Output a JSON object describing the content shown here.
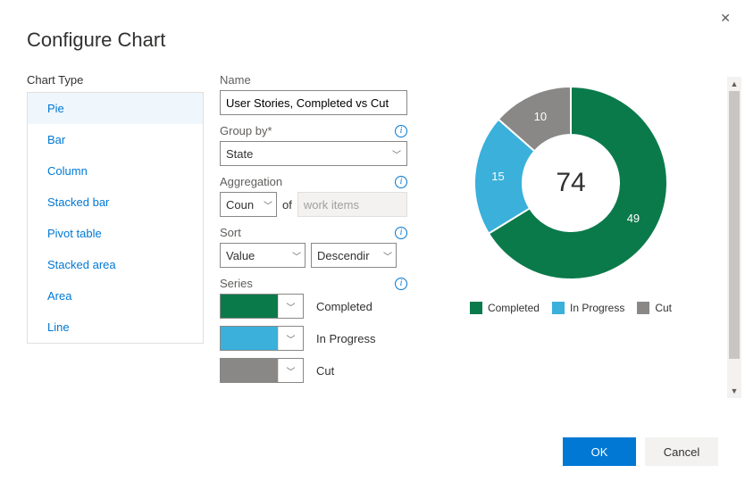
{
  "dialog": {
    "title": "Configure Chart",
    "close_label": "Close"
  },
  "chart_type": {
    "section_label": "Chart Type",
    "items": [
      "Pie",
      "Bar",
      "Column",
      "Stacked bar",
      "Pivot table",
      "Stacked area",
      "Area",
      "Line"
    ],
    "selected_index": 0
  },
  "fields": {
    "name_label": "Name",
    "name_value": "User Stories, Completed vs Cut",
    "group_by_label": "Group by*",
    "group_by_value": "State",
    "aggregation_label": "Aggregation",
    "aggregation_value": "Coun",
    "of_label": "of",
    "of_placeholder": "work items",
    "sort_label": "Sort",
    "sort_field": "Value",
    "sort_direction": "Descendir",
    "series_label": "Series"
  },
  "series": [
    {
      "label": "Completed",
      "color": "#0b7a4b"
    },
    {
      "label": "In Progress",
      "color": "#3ab0db"
    },
    {
      "label": "Cut",
      "color": "#8a8886"
    }
  ],
  "preview": {
    "type": "pie",
    "total": "74",
    "background_color": "#ffffff",
    "slice_value_fontsize": 13,
    "total_fontsize": 30,
    "inner_radius_ratio": 0.5,
    "slices": [
      {
        "label": "Completed",
        "value": 49,
        "color": "#0b7a4b"
      },
      {
        "label": "In Progress",
        "value": 15,
        "color": "#3ab0db"
      },
      {
        "label": "Cut",
        "value": 10,
        "color": "#8a8886"
      }
    ],
    "legend_position": "bottom"
  },
  "footer": {
    "ok_label": "OK",
    "cancel_label": "Cancel"
  },
  "colors": {
    "accent": "#0078d4",
    "border": "#8a8886"
  }
}
